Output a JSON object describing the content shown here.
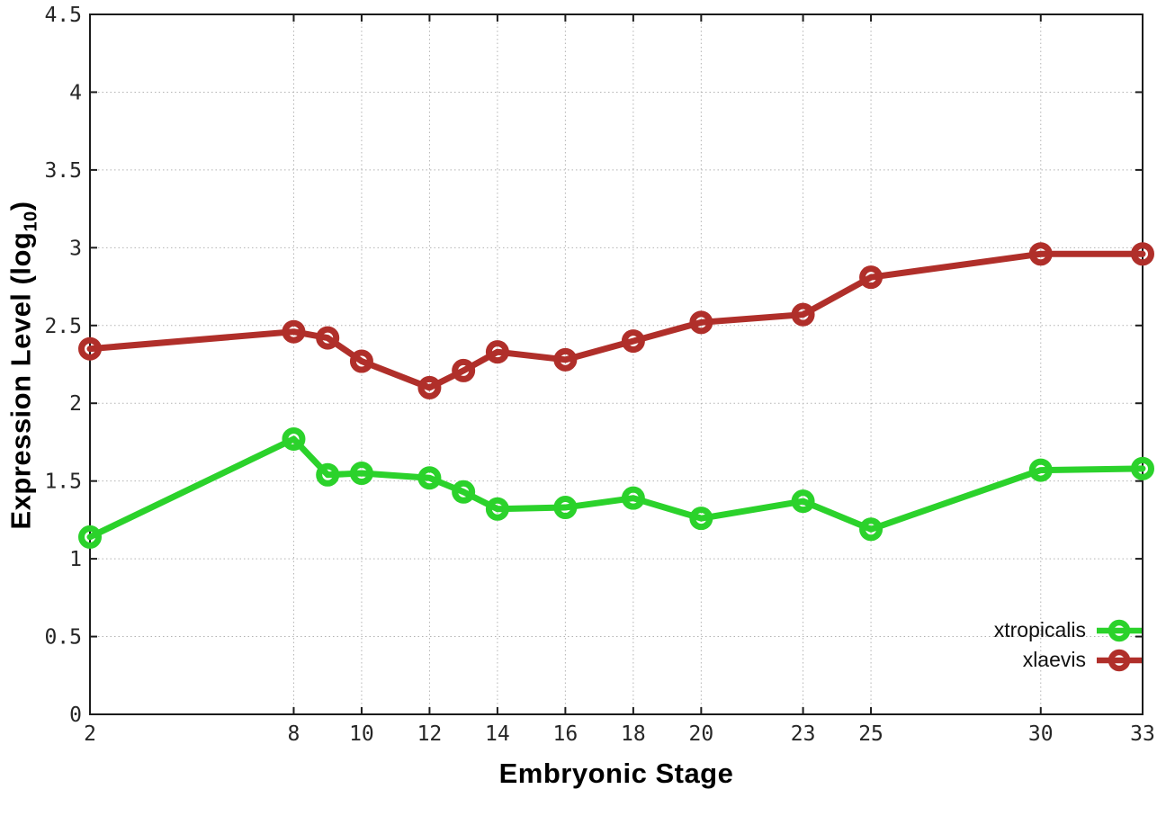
{
  "chart_data": {
    "type": "line",
    "title": "",
    "xlabel": "Embryonic Stage",
    "ylabel": {
      "base": "Expression Level (log",
      "sub": "10",
      "close": ")"
    },
    "xlim": [
      2,
      33
    ],
    "ylim": [
      0,
      4.5
    ],
    "grid": true,
    "grid_style": "dotted",
    "legend_position": "inside-bottom-right",
    "marker": "open-circle",
    "x_ticks": [
      2,
      8,
      10,
      12,
      14,
      16,
      18,
      20,
      23,
      25,
      30,
      33
    ],
    "x_tick_labels": [
      "2",
      "8",
      "10",
      "12",
      "14",
      "16",
      "18",
      "20",
      "23",
      "25",
      "30",
      "33"
    ],
    "y_ticks": [
      0,
      0.5,
      1,
      1.5,
      2,
      2.5,
      3,
      3.5,
      4,
      4.5
    ],
    "y_tick_labels": [
      "0",
      "0.5",
      "1",
      "1.5",
      "2",
      "2.5",
      "3",
      "3.5",
      "4",
      "4.5"
    ],
    "x": [
      2,
      8,
      9,
      10,
      12,
      13,
      14,
      16,
      18,
      20,
      23,
      25,
      30,
      33
    ],
    "series": [
      {
        "name": "xtropicalis",
        "color": "#2bd22b",
        "values": [
          1.14,
          1.77,
          1.54,
          1.55,
          1.52,
          1.43,
          1.32,
          1.33,
          1.39,
          1.26,
          1.37,
          1.19,
          1.57,
          1.58
        ]
      },
      {
        "name": "xlaevis",
        "color": "#b02f2a",
        "values": [
          2.35,
          2.46,
          2.42,
          2.27,
          2.1,
          2.21,
          2.33,
          2.28,
          2.4,
          2.52,
          2.57,
          2.81,
          2.96,
          2.96
        ]
      }
    ]
  },
  "colors": {
    "background": "#ffffff",
    "border": "#1c1c1c",
    "grid": "#b3b3b3",
    "tick_text": "#262626"
  }
}
